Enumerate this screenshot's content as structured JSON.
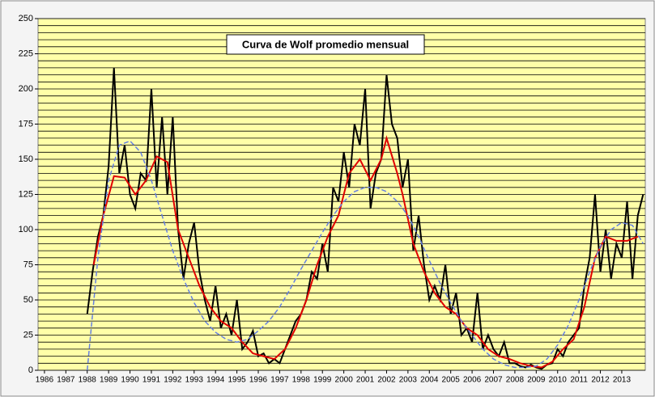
{
  "chart_data": {
    "type": "line",
    "title": "Curva de Wolf promedio mensual",
    "xlim": [
      1985.7,
      2014.1
    ],
    "xticks": [
      1986,
      1987,
      1988,
      1989,
      1990,
      1991,
      1992,
      1993,
      1994,
      1995,
      1996,
      1997,
      1998,
      1999,
      2000,
      2001,
      2002,
      2003,
      2004,
      2005,
      2006,
      2007,
      2008,
      2009,
      2010,
      2011,
      2012,
      2013
    ],
    "ylim": [
      0,
      250
    ],
    "yticks": [
      0,
      25,
      50,
      75,
      100,
      125,
      150,
      175,
      200,
      225,
      250
    ],
    "grid_step": 5,
    "background": "#ffffa8",
    "series": [
      {
        "color": "#000000",
        "dash": false,
        "x": [
          1988.0,
          1988.25,
          1988.5,
          1988.75,
          1989.0,
          1989.25,
          1989.5,
          1989.75,
          1990.0,
          1990.25,
          1990.5,
          1990.75,
          1991.0,
          1991.25,
          1991.5,
          1991.75,
          1992.0,
          1992.25,
          1992.5,
          1992.75,
          1993.0,
          1993.25,
          1993.5,
          1993.75,
          1994.0,
          1994.25,
          1994.5,
          1994.75,
          1995.0,
          1995.25,
          1995.5,
          1995.75,
          1996.0,
          1996.25,
          1996.5,
          1996.75,
          1997.0,
          1997.25,
          1997.5,
          1997.75,
          1998.0,
          1998.25,
          1998.5,
          1998.75,
          1999.0,
          1999.25,
          1999.5,
          1999.75,
          2000.0,
          2000.25,
          2000.5,
          2000.75,
          2001.0,
          2001.25,
          2001.5,
          2001.75,
          2002.0,
          2002.25,
          2002.5,
          2002.75,
          2003.0,
          2003.25,
          2003.5,
          2003.75,
          2004.0,
          2004.25,
          2004.5,
          2004.75,
          2005.0,
          2005.25,
          2005.5,
          2005.75,
          2006.0,
          2006.25,
          2006.5,
          2006.75,
          2007.0,
          2007.25,
          2007.5,
          2007.75,
          2008.0,
          2008.25,
          2008.5,
          2008.75,
          2009.0,
          2009.25,
          2009.5,
          2009.75,
          2010.0,
          2010.25,
          2010.5,
          2010.75,
          2011.0,
          2011.25,
          2011.5,
          2011.75,
          2012.0,
          2012.25,
          2012.5,
          2012.75,
          2013.0,
          2013.25,
          2013.5,
          2013.75,
          2014.0
        ],
        "values": [
          40,
          70,
          95,
          110,
          145,
          215,
          140,
          160,
          125,
          115,
          140,
          135,
          200,
          130,
          180,
          125,
          180,
          100,
          65,
          90,
          105,
          70,
          50,
          35,
          60,
          30,
          40,
          25,
          50,
          15,
          20,
          28,
          10,
          12,
          5,
          8,
          5,
          15,
          25,
          35,
          40,
          50,
          70,
          65,
          90,
          70,
          130,
          120,
          155,
          130,
          175,
          160,
          200,
          115,
          140,
          150,
          210,
          175,
          165,
          130,
          150,
          85,
          110,
          75,
          50,
          60,
          50,
          75,
          40,
          55,
          25,
          30,
          20,
          55,
          15,
          25,
          15,
          10,
          20,
          5,
          5,
          3,
          2,
          4,
          2,
          1,
          4,
          5,
          15,
          10,
          20,
          25,
          30,
          60,
          80,
          125,
          70,
          100,
          65,
          90,
          80,
          120,
          65,
          110,
          125
        ]
      },
      {
        "color": "#e00000",
        "dash": false,
        "x": [
          1988.3,
          1988.75,
          1989.25,
          1989.75,
          1990.25,
          1990.75,
          1991.25,
          1991.75,
          1992.25,
          1992.75,
          1993.25,
          1993.75,
          1994.25,
          1994.75,
          1995.25,
          1995.75,
          1996.25,
          1996.75,
          1997.25,
          1997.75,
          1998.25,
          1998.75,
          1999.25,
          1999.75,
          2000.25,
          2000.75,
          2001.25,
          2001.75,
          2002.0,
          2002.5,
          2002.75,
          2003.25,
          2003.75,
          2004.25,
          2004.75,
          2005.25,
          2005.75,
          2006.25,
          2006.75,
          2007.25,
          2007.75,
          2008.25,
          2008.75,
          2009.25,
          2009.75,
          2010.25,
          2010.75,
          2011.25,
          2011.75,
          2012.25,
          2012.75,
          2013.25,
          2013.75
        ],
        "values": [
          75,
          110,
          138,
          137,
          125,
          135,
          152,
          148,
          100,
          80,
          60,
          45,
          35,
          30,
          20,
          12,
          10,
          8,
          15,
          30,
          50,
          75,
          95,
          110,
          140,
          150,
          135,
          150,
          165,
          140,
          125,
          90,
          70,
          55,
          45,
          40,
          30,
          25,
          15,
          10,
          8,
          5,
          3,
          2,
          6,
          15,
          22,
          45,
          80,
          95,
          92,
          92,
          95
        ]
      },
      {
        "color": "#6680e0",
        "dash": true,
        "x": [
          1988.0,
          1988.5,
          1989.0,
          1989.5,
          1990.0,
          1990.5,
          1991.0,
          1991.5,
          1992.0,
          1992.5,
          1993.0,
          1993.5,
          1994.0,
          1994.5,
          1995.0,
          1995.5,
          1996.0,
          1996.5,
          1997.0,
          1997.5,
          1998.0,
          1998.5,
          1999.0,
          1999.5,
          2000.0,
          2000.5,
          2001.0,
          2001.5,
          2002.0,
          2002.5,
          2003.0,
          2003.5,
          2004.0,
          2004.5,
          2005.0,
          2005.5,
          2006.0,
          2006.5,
          2007.0,
          2007.5,
          2008.0,
          2008.5,
          2009.0,
          2009.5,
          2010.0,
          2010.5,
          2011.0,
          2011.5,
          2012.0,
          2012.5,
          2013.0,
          2013.5,
          2014.0
        ],
        "values": [
          0,
          80,
          135,
          160,
          163,
          155,
          135,
          110,
          85,
          65,
          48,
          35,
          27,
          22,
          20,
          22,
          28,
          35,
          45,
          58,
          72,
          85,
          98,
          110,
          120,
          127,
          130,
          130,
          127,
          120,
          110,
          95,
          78,
          62,
          48,
          35,
          25,
          15,
          8,
          4,
          2,
          2,
          3,
          8,
          18,
          32,
          50,
          70,
          88,
          100,
          105,
          103,
          90
        ]
      }
    ]
  }
}
